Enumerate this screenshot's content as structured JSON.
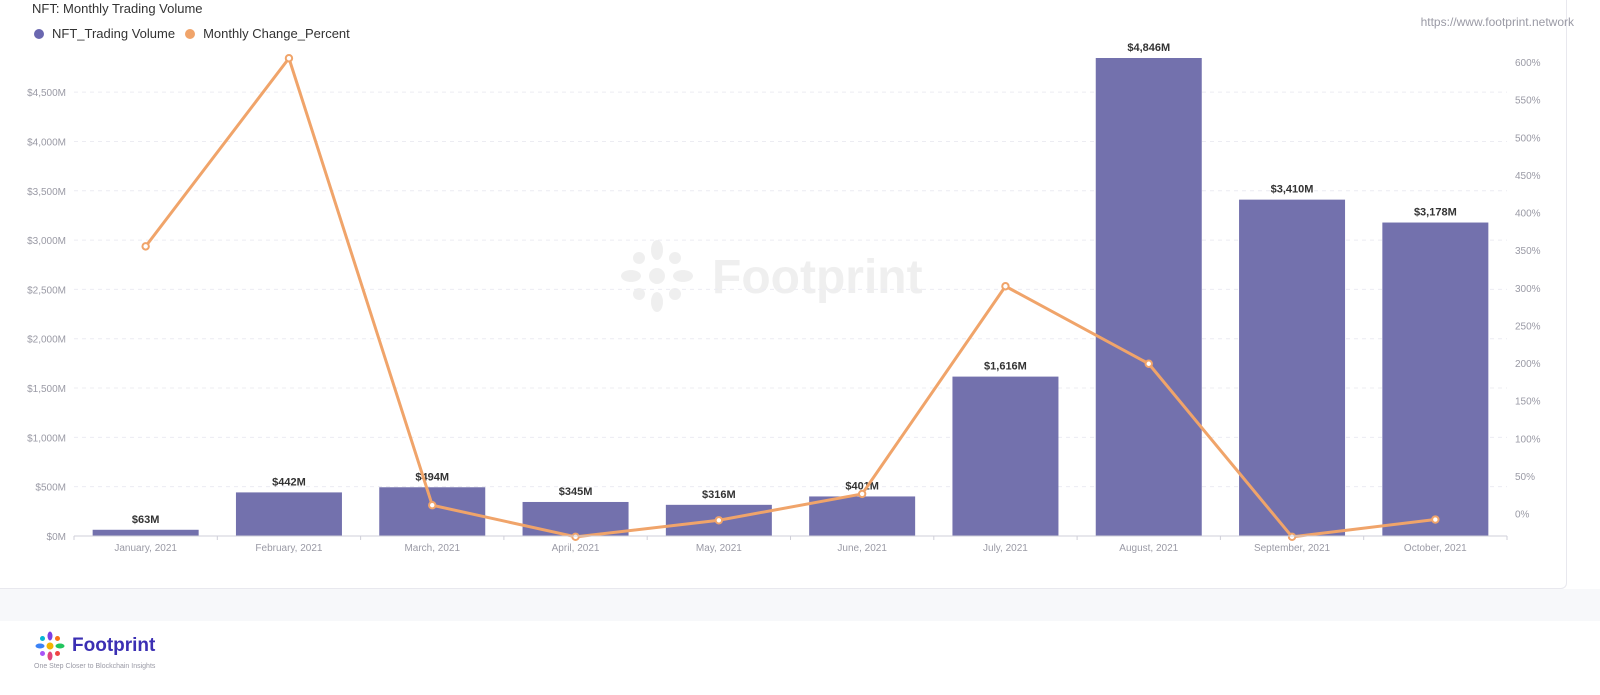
{
  "chart_title": "NFT: Monthly Trading Volume",
  "source_url": "https://www.footprint.network",
  "watermark": "Footprint",
  "brand": {
    "name": "Footprint",
    "tagline": "One Step Closer to Blockchain Insights"
  },
  "colors": {
    "bar": "#7371ad",
    "line": "#f0a46a",
    "grid": "#ececf2",
    "axis_text": "#9a9aa5"
  },
  "chart_data": {
    "type": "bar",
    "title": "NFT: Monthly Trading Volume",
    "categories": [
      "January, 2021",
      "February, 2021",
      "March, 2021",
      "April, 2021",
      "May, 2021",
      "June, 2021",
      "July, 2021",
      "August, 2021",
      "September, 2021",
      "October, 2021"
    ],
    "series": [
      {
        "name": "NFT_Trading Volume",
        "type": "bar",
        "axis": "left",
        "values": [
          63,
          442,
          494,
          345,
          316,
          401,
          1616,
          4846,
          3410,
          3178
        ],
        "labels": [
          "$63M",
          "$442M",
          "$494M",
          "$345M",
          "$316M",
          "$401M",
          "$1,616M",
          "$4,846M",
          "$3,410M",
          "$3,178M"
        ]
      },
      {
        "name": "Monthly Change_Percent",
        "type": "line",
        "axis": "right",
        "values": [
          355,
          605,
          11,
          -31,
          -9,
          26,
          302,
          199,
          -31,
          -8
        ]
      }
    ],
    "y_left": {
      "min": 0,
      "max": 4846,
      "ticks": [
        0,
        500,
        1000,
        1500,
        2000,
        2500,
        3000,
        3500,
        4000,
        4500
      ],
      "tick_labels": [
        "$0M",
        "$500M",
        "$1,000M",
        "$1,500M",
        "$2,000M",
        "$2,500M",
        "$3,000M",
        "$3,500M",
        "$4,000M",
        "$4,500M"
      ]
    },
    "y_right": {
      "min": -31,
      "max": 605,
      "ticks": [
        0,
        50,
        100,
        150,
        200,
        250,
        300,
        350,
        400,
        450,
        500,
        550,
        600
      ],
      "tick_labels": [
        "0%",
        "50%",
        "100%",
        "150%",
        "200%",
        "250%",
        "300%",
        "350%",
        "400%",
        "450%",
        "500%",
        "550%",
        "600%"
      ]
    },
    "grid": true,
    "legend_position": "top-left"
  }
}
